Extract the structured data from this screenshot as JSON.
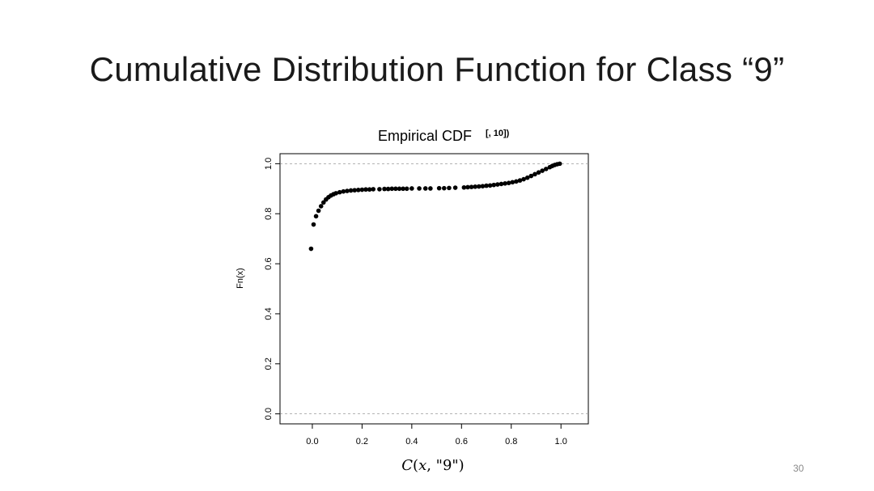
{
  "slide": {
    "title": "Cumulative Distribution Function for Class “9”",
    "page_number": "30"
  },
  "chart_data": {
    "type": "scatter",
    "title": "Empirical CDF",
    "title_suffix": "[, 10])",
    "xlabel": "𝐶(𝑥, \"9\")",
    "ylabel": "Fn(x)",
    "xlim": [
      -0.13,
      1.11
    ],
    "ylim": [
      -0.04,
      1.04
    ],
    "x_ticks": [
      0.0,
      0.2,
      0.4,
      0.6,
      0.8,
      1.0
    ],
    "x_tick_labels": [
      "0.0",
      "0.2",
      "0.4",
      "0.6",
      "0.8",
      "1.0"
    ],
    "y_ticks": [
      0.0,
      0.2,
      0.4,
      0.6,
      0.8,
      1.0
    ],
    "y_tick_labels": [
      "0.0",
      "0.2",
      "0.4",
      "0.6",
      "0.8",
      "1.0"
    ],
    "reference_lines_y": [
      0.0,
      1.0
    ],
    "grid": false,
    "point_color": "#000000",
    "reference_line_color": "#9a9a9a",
    "x": [
      -0.005,
      0.005,
      0.015,
      0.025,
      0.035,
      0.045,
      0.055,
      0.065,
      0.075,
      0.085,
      0.095,
      0.11,
      0.125,
      0.14,
      0.155,
      0.17,
      0.185,
      0.2,
      0.215,
      0.23,
      0.245,
      0.27,
      0.29,
      0.305,
      0.32,
      0.335,
      0.35,
      0.365,
      0.38,
      0.4,
      0.43,
      0.455,
      0.475,
      0.51,
      0.53,
      0.55,
      0.575,
      0.61,
      0.625,
      0.64,
      0.655,
      0.67,
      0.685,
      0.7,
      0.715,
      0.73,
      0.745,
      0.76,
      0.775,
      0.79,
      0.805,
      0.82,
      0.835,
      0.85,
      0.865,
      0.88,
      0.895,
      0.91,
      0.925,
      0.94,
      0.955,
      0.965,
      0.975,
      0.985,
      0.995
    ],
    "y": [
      0.66,
      0.757,
      0.79,
      0.812,
      0.83,
      0.845,
      0.857,
      0.866,
      0.873,
      0.878,
      0.882,
      0.886,
      0.889,
      0.891,
      0.893,
      0.894,
      0.895,
      0.896,
      0.897,
      0.897,
      0.898,
      0.898,
      0.899,
      0.899,
      0.9,
      0.9,
      0.9,
      0.9,
      0.9,
      0.901,
      0.901,
      0.901,
      0.901,
      0.902,
      0.902,
      0.903,
      0.904,
      0.905,
      0.906,
      0.907,
      0.908,
      0.909,
      0.91,
      0.912,
      0.913,
      0.915,
      0.917,
      0.919,
      0.921,
      0.923,
      0.926,
      0.929,
      0.933,
      0.938,
      0.944,
      0.951,
      0.958,
      0.965,
      0.972,
      0.979,
      0.986,
      0.991,
      0.995,
      0.998,
      1.0
    ]
  }
}
